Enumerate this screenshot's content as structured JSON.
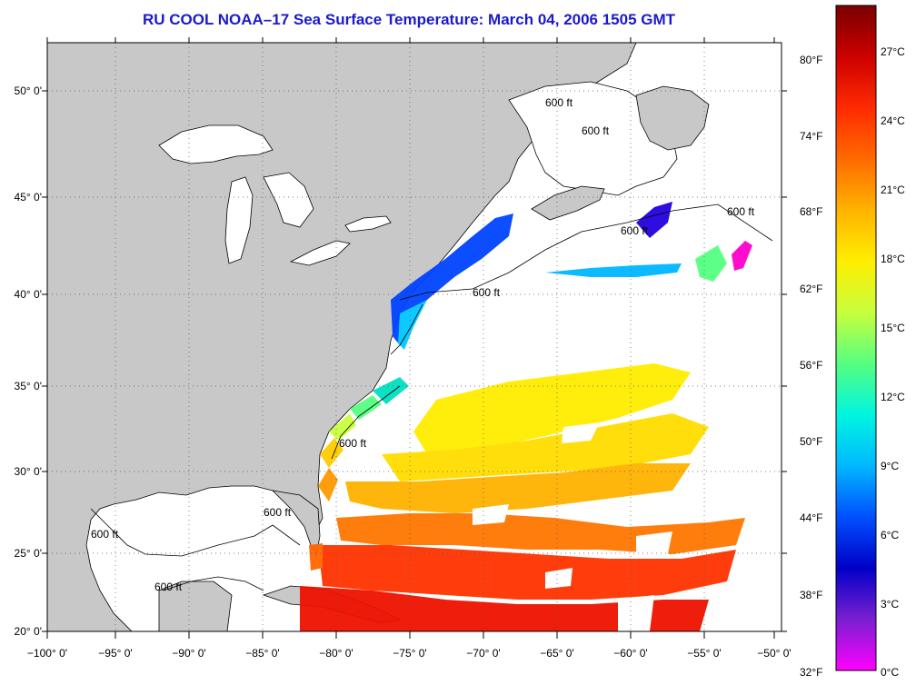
{
  "title": "RU COOL  NOAA–17  Sea Surface Temperature:  March 04, 2006 1505 GMT",
  "lon_ticks": [
    "−100° 0'",
    "−95° 0'",
    "−90° 0'",
    "−85° 0'",
    "−80° 0'",
    "−75° 0'",
    "−70° 0'",
    "−65° 0'",
    "−60° 0'",
    "−55° 0'",
    "−50° 0'"
  ],
  "lat_ticks": [
    "50° 0'",
    "45° 0'",
    "40° 0'",
    "35° 0'",
    "30° 0'",
    "25° 0'",
    "20° 0'"
  ],
  "contour_labels": [
    "600 ft",
    "600 ft",
    "600 ft",
    "600 ft",
    "600 ft",
    "600 ft",
    "600 ft",
    "600 ft",
    "600 ft"
  ],
  "colorbar": {
    "fahrenheit": [
      "80°F",
      "74°F",
      "68°F",
      "62°F",
      "56°F",
      "50°F",
      "44°F",
      "38°F",
      "32°F"
    ],
    "celsius": [
      "27°C",
      "24°C",
      "21°C",
      "18°C",
      "15°C",
      "12°C",
      "9°C",
      "6°C",
      "3°C",
      "0°C"
    ],
    "gradient": [
      "#7a0000",
      "#cc0000",
      "#ff2a00",
      "#ff6a00",
      "#ffb300",
      "#ffee00",
      "#c8ff3c",
      "#55ff80",
      "#00f5e0",
      "#00b8ff",
      "#0050ff",
      "#0000c8",
      "#7a1fd0",
      "#ff00ff"
    ]
  },
  "colors": {
    "land": "#c8c8c8",
    "ocean_nodata": "#ffffff",
    "title": "#1a1acc"
  }
}
